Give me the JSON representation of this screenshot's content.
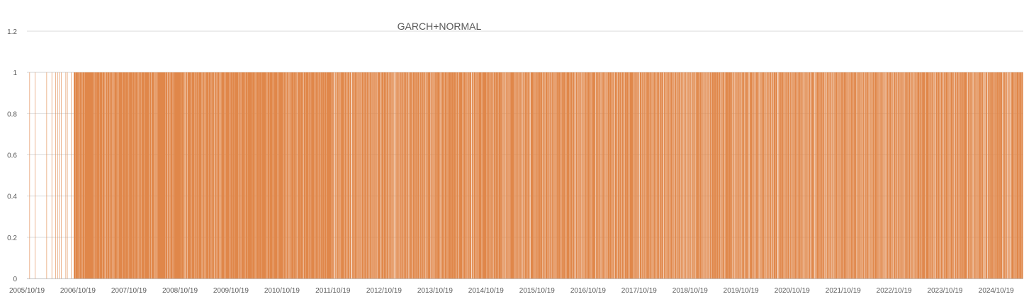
{
  "chart_data": {
    "type": "bar",
    "title": "GARCH+NORMAL",
    "xlabel": "",
    "ylabel": "",
    "ylim": [
      0,
      1.2
    ],
    "yticks": [
      "0",
      "0.2",
      "0.4",
      "0.6",
      "0.8",
      "1",
      "1.2"
    ],
    "x_tick_labels": [
      "2005/10/19",
      "2006/10/19",
      "2007/10/19",
      "2008/10/19",
      "2009/10/19",
      "2010/10/19",
      "2011/10/19",
      "2012/10/19",
      "2013/10/19",
      "2014/10/19",
      "2015/10/19",
      "2016/10/19",
      "2017/10/19",
      "2018/10/19",
      "2019/10/19",
      "2020/10/19",
      "2021/10/19",
      "2022/10/19",
      "2023/10/19",
      "2024/10/19"
    ],
    "x_range": [
      "2005/10/19",
      "2025/05/01"
    ],
    "grid": true,
    "legend": "none",
    "series": [
      {
        "color": "#e0874a",
        "value_when_present": 1,
        "description_of_values": "daily indicator, 1 on most days",
        "density_by_period": [
          {
            "start": "2005/10/19",
            "end": "2006/09/19",
            "fill_fraction": 0.05
          },
          {
            "start": "2006/09/19",
            "end": "2011/10/19",
            "fill_fraction": 0.92
          },
          {
            "start": "2011/10/19",
            "end": "2017/10/19",
            "fill_fraction": 0.8
          },
          {
            "start": "2017/10/19",
            "end": "2025/05/01",
            "fill_fraction": 0.72
          }
        ]
      }
    ]
  }
}
